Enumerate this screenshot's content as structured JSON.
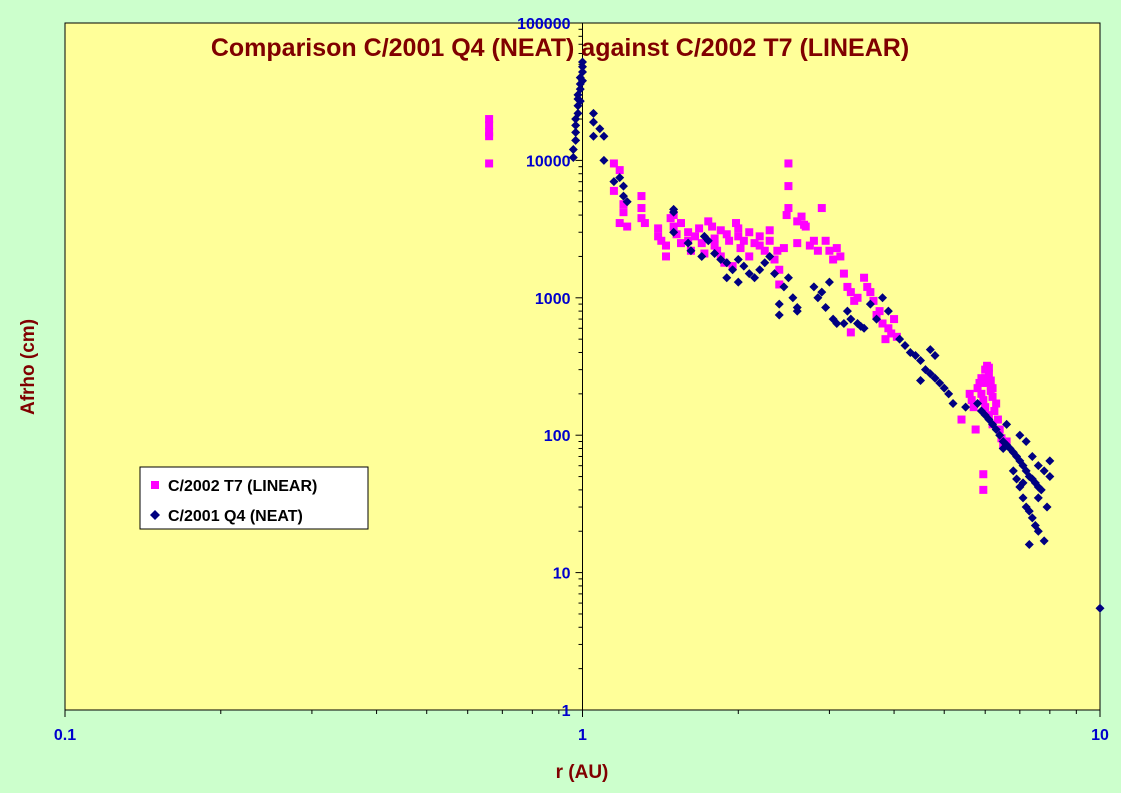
{
  "chart_data": {
    "type": "scatter",
    "title": "Comparison C/2001 Q4 (NEAT) against C/2002 T7 (LINEAR)",
    "xlabel": "r (AU)",
    "ylabel": "Afrho (cm)",
    "x_scale": "log",
    "y_scale": "log",
    "xlim": [
      0.1,
      10
    ],
    "ylim": [
      1,
      100000
    ],
    "x_ticks": [
      0.1,
      1,
      10
    ],
    "x_tick_labels": [
      "0.1",
      "1",
      "10"
    ],
    "y_ticks": [
      1,
      10,
      100,
      1000,
      10000,
      100000
    ],
    "y_tick_labels": [
      "1",
      "10",
      "100",
      "1000",
      "10000",
      "100000"
    ],
    "grid": false,
    "legend_position": "left-middle",
    "colors": {
      "background": "#ccffcc",
      "plot_area": "#ffff99",
      "title": "#800000",
      "ticks": "#0000cc"
    },
    "series": [
      {
        "name": "C/2002 T7 (LINEAR)",
        "marker": "square",
        "color": "#ff00ff",
        "points": [
          [
            0.66,
            20000
          ],
          [
            0.66,
            18000
          ],
          [
            0.66,
            16000
          ],
          [
            0.66,
            15000
          ],
          [
            0.66,
            9500
          ],
          [
            1.15,
            9500
          ],
          [
            1.18,
            8500
          ],
          [
            1.15,
            6000
          ],
          [
            1.2,
            4800
          ],
          [
            1.2,
            4200
          ],
          [
            1.18,
            3500
          ],
          [
            1.22,
            3300
          ],
          [
            1.3,
            5500
          ],
          [
            1.3,
            4500
          ],
          [
            1.3,
            3800
          ],
          [
            1.32,
            3500
          ],
          [
            1.4,
            3200
          ],
          [
            1.4,
            2800
          ],
          [
            1.42,
            2600
          ],
          [
            1.45,
            2400
          ],
          [
            1.45,
            2000
          ],
          [
            1.48,
            3800
          ],
          [
            1.5,
            4000
          ],
          [
            1.5,
            3300
          ],
          [
            1.52,
            2900
          ],
          [
            1.55,
            3500
          ],
          [
            1.55,
            2500
          ],
          [
            1.6,
            3000
          ],
          [
            1.6,
            2600
          ],
          [
            1.62,
            2200
          ],
          [
            1.65,
            2800
          ],
          [
            1.68,
            3200
          ],
          [
            1.7,
            2500
          ],
          [
            1.72,
            2100
          ],
          [
            1.75,
            3600
          ],
          [
            1.78,
            3300
          ],
          [
            1.8,
            2700
          ],
          [
            1.8,
            2400
          ],
          [
            1.82,
            2200
          ],
          [
            1.85,
            3100
          ],
          [
            1.85,
            2000
          ],
          [
            1.88,
            1800
          ],
          [
            1.9,
            2900
          ],
          [
            1.92,
            2600
          ],
          [
            1.95,
            1700
          ],
          [
            1.98,
            3500
          ],
          [
            2.0,
            3200
          ],
          [
            2.0,
            2800
          ],
          [
            2.02,
            2300
          ],
          [
            2.05,
            2600
          ],
          [
            2.1,
            2000
          ],
          [
            2.1,
            3000
          ],
          [
            2.15,
            2500
          ],
          [
            2.2,
            2800
          ],
          [
            2.2,
            2400
          ],
          [
            2.25,
            2200
          ],
          [
            2.3,
            2600
          ],
          [
            2.3,
            3100
          ],
          [
            2.35,
            1900
          ],
          [
            2.38,
            2200
          ],
          [
            2.4,
            1600
          ],
          [
            2.4,
            1250
          ],
          [
            2.45,
            2300
          ],
          [
            2.5,
            9500
          ],
          [
            2.5,
            6500
          ],
          [
            2.48,
            4000
          ],
          [
            2.5,
            4500
          ],
          [
            2.6,
            3600
          ],
          [
            2.65,
            3900
          ],
          [
            2.68,
            3400
          ],
          [
            2.7,
            3300
          ],
          [
            2.75,
            2400
          ],
          [
            2.6,
            2500
          ],
          [
            2.8,
            2600
          ],
          [
            2.85,
            2200
          ],
          [
            2.9,
            4500
          ],
          [
            2.95,
            2600
          ],
          [
            3.0,
            2200
          ],
          [
            3.05,
            1900
          ],
          [
            3.1,
            2300
          ],
          [
            3.15,
            2000
          ],
          [
            3.2,
            1500
          ],
          [
            3.25,
            1200
          ],
          [
            3.3,
            1100
          ],
          [
            3.35,
            950
          ],
          [
            3.4,
            1000
          ],
          [
            3.5,
            1400
          ],
          [
            3.55,
            1200
          ],
          [
            3.6,
            1100
          ],
          [
            3.65,
            950
          ],
          [
            3.7,
            750
          ],
          [
            3.75,
            800
          ],
          [
            3.8,
            650
          ],
          [
            3.9,
            600
          ],
          [
            3.95,
            550
          ],
          [
            4.0,
            700
          ],
          [
            4.05,
            520
          ],
          [
            3.3,
            560
          ],
          [
            3.85,
            500
          ],
          [
            5.4,
            130
          ],
          [
            5.6,
            200
          ],
          [
            5.65,
            180
          ],
          [
            5.7,
            160
          ],
          [
            5.75,
            110
          ],
          [
            5.8,
            220
          ],
          [
            5.85,
            240
          ],
          [
            5.9,
            260
          ],
          [
            5.9,
            200
          ],
          [
            5.95,
            180
          ],
          [
            6.0,
            300
          ],
          [
            6.0,
            260
          ],
          [
            6.05,
            240
          ],
          [
            6.1,
            280
          ],
          [
            6.15,
            210
          ],
          [
            6.2,
            190
          ],
          [
            6.25,
            150
          ],
          [
            6.3,
            170
          ],
          [
            6.35,
            130
          ],
          [
            6.4,
            110
          ],
          [
            6.45,
            95
          ],
          [
            6.5,
            85
          ],
          [
            6.6,
            90
          ],
          [
            6.2,
            120
          ],
          [
            6.0,
            160
          ],
          [
            6.1,
            140
          ],
          [
            5.95,
            52
          ],
          [
            5.95,
            40
          ],
          [
            6.05,
            320
          ],
          [
            6.1,
            310
          ],
          [
            6.15,
            250
          ],
          [
            6.2,
            220
          ]
        ]
      },
      {
        "name": "C/2001 Q4 (NEAT)",
        "marker": "diamond",
        "color": "#000080",
        "points": [
          [
            0.96,
            10500
          ],
          [
            0.96,
            12000
          ],
          [
            0.97,
            14000
          ],
          [
            0.97,
            16000
          ],
          [
            0.97,
            18000
          ],
          [
            0.97,
            20000
          ],
          [
            0.98,
            22000
          ],
          [
            0.98,
            25000
          ],
          [
            0.98,
            28000
          ],
          [
            0.98,
            30000
          ],
          [
            0.99,
            33000
          ],
          [
            0.99,
            36000
          ],
          [
            0.99,
            40000
          ],
          [
            1.0,
            44000
          ],
          [
            1.0,
            48000
          ],
          [
            1.0,
            52000
          ],
          [
            1.0,
            38000
          ],
          [
            0.99,
            27000
          ],
          [
            1.05,
            22000
          ],
          [
            1.05,
            19000
          ],
          [
            1.05,
            15000
          ],
          [
            1.08,
            17000
          ],
          [
            1.1,
            15000
          ],
          [
            1.1,
            10000
          ],
          [
            1.18,
            7500
          ],
          [
            1.2,
            6500
          ],
          [
            1.22,
            5000
          ],
          [
            1.2,
            5500
          ],
          [
            1.15,
            7000
          ],
          [
            1.5,
            4200
          ],
          [
            1.5,
            4400
          ],
          [
            1.5,
            3000
          ],
          [
            1.6,
            2500
          ],
          [
            1.62,
            2200
          ],
          [
            1.7,
            2000
          ],
          [
            1.72,
            2800
          ],
          [
            1.75,
            2600
          ],
          [
            1.8,
            2100
          ],
          [
            1.85,
            1900
          ],
          [
            1.9,
            1800
          ],
          [
            1.9,
            1400
          ],
          [
            1.95,
            1600
          ],
          [
            2.0,
            1900
          ],
          [
            2.0,
            1300
          ],
          [
            2.05,
            1700
          ],
          [
            2.1,
            1500
          ],
          [
            2.15,
            1400
          ],
          [
            2.2,
            1600
          ],
          [
            2.25,
            1800
          ],
          [
            2.3,
            2000
          ],
          [
            2.35,
            1500
          ],
          [
            2.4,
            750
          ],
          [
            2.4,
            900
          ],
          [
            2.45,
            1200
          ],
          [
            2.5,
            1400
          ],
          [
            2.55,
            1000
          ],
          [
            2.6,
            800
          ],
          [
            2.6,
            850
          ],
          [
            2.8,
            1200
          ],
          [
            2.85,
            1000
          ],
          [
            2.9,
            1100
          ],
          [
            2.95,
            850
          ],
          [
            3.0,
            1300
          ],
          [
            3.05,
            700
          ],
          [
            3.1,
            650
          ],
          [
            3.2,
            650
          ],
          [
            3.25,
            800
          ],
          [
            3.3,
            700
          ],
          [
            3.4,
            650
          ],
          [
            3.45,
            620
          ],
          [
            3.5,
            600
          ],
          [
            3.6,
            900
          ],
          [
            3.7,
            700
          ],
          [
            3.8,
            1000
          ],
          [
            3.9,
            800
          ],
          [
            4.1,
            500
          ],
          [
            4.2,
            450
          ],
          [
            4.3,
            400
          ],
          [
            4.4,
            380
          ],
          [
            4.5,
            350
          ],
          [
            4.6,
            300
          ],
          [
            4.7,
            280
          ],
          [
            4.8,
            260
          ],
          [
            4.9,
            240
          ],
          [
            5.0,
            220
          ],
          [
            4.5,
            250
          ],
          [
            4.7,
            420
          ],
          [
            4.8,
            380
          ],
          [
            5.1,
            200
          ],
          [
            5.2,
            170
          ],
          [
            5.5,
            160
          ],
          [
            5.8,
            170
          ],
          [
            5.9,
            150
          ],
          [
            6.0,
            140
          ],
          [
            6.1,
            130
          ],
          [
            6.2,
            120
          ],
          [
            6.3,
            110
          ],
          [
            6.4,
            100
          ],
          [
            6.5,
            90
          ],
          [
            6.6,
            85
          ],
          [
            6.7,
            80
          ],
          [
            6.8,
            75
          ],
          [
            6.9,
            70
          ],
          [
            7.0,
            65
          ],
          [
            7.1,
            60
          ],
          [
            7.2,
            55
          ],
          [
            7.3,
            50
          ],
          [
            7.4,
            48
          ],
          [
            7.5,
            45
          ],
          [
            7.6,
            42
          ],
          [
            7.7,
            40
          ],
          [
            7.0,
            100
          ],
          [
            7.2,
            90
          ],
          [
            7.4,
            70
          ],
          [
            7.6,
            60
          ],
          [
            7.8,
            55
          ],
          [
            8.0,
            50
          ],
          [
            8.0,
            65
          ],
          [
            7.1,
            35
          ],
          [
            7.2,
            30
          ],
          [
            7.3,
            28
          ],
          [
            7.4,
            25
          ],
          [
            7.5,
            22
          ],
          [
            7.6,
            20
          ],
          [
            7.3,
            16
          ],
          [
            7.8,
            17
          ],
          [
            6.8,
            55
          ],
          [
            6.9,
            48
          ],
          [
            7.0,
            42
          ],
          [
            7.1,
            45
          ],
          [
            7.6,
            35
          ],
          [
            7.9,
            30
          ],
          [
            6.5,
            80
          ],
          [
            6.6,
            120
          ],
          [
            10.0,
            5.5
          ]
        ]
      }
    ]
  }
}
